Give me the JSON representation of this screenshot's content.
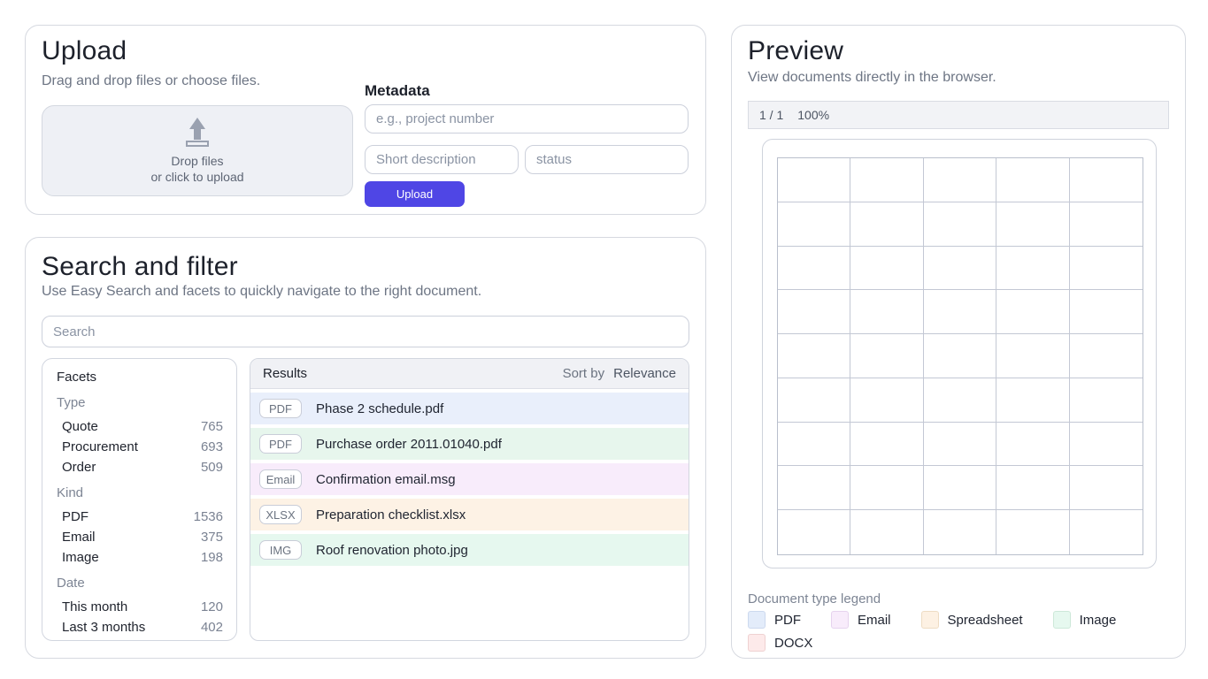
{
  "upload": {
    "title": "Upload",
    "subtitle": "Drag and drop files or choose files.",
    "dropzone_line1": "Drop files",
    "dropzone_line2": "or click to upload",
    "metadata_title": "Metadata",
    "project_placeholder": "e.g., project number",
    "description_placeholder": "Short description",
    "status_placeholder": "status",
    "button_label": "Upload",
    "button_color": "#4f46e5"
  },
  "search": {
    "title": "Search and filter",
    "subtitle": "Use Easy Search and facets to quickly navigate to the right document.",
    "search_placeholder": "Search",
    "facets": {
      "title": "Facets",
      "groups": [
        {
          "label": "Type",
          "items": [
            {
              "label": "Quote",
              "count": "765"
            },
            {
              "label": "Procurement",
              "count": "693"
            },
            {
              "label": "Order",
              "count": "509"
            }
          ]
        },
        {
          "label": "Kind",
          "items": [
            {
              "label": "PDF",
              "count": "1536"
            },
            {
              "label": "Email",
              "count": "375"
            },
            {
              "label": "Image",
              "count": "198"
            }
          ]
        },
        {
          "label": "Date",
          "items": [
            {
              "label": "This month",
              "count": "120"
            },
            {
              "label": "Last 3 months",
              "count": "402"
            }
          ]
        }
      ]
    },
    "results": {
      "title": "Results",
      "sort_label": "Sort by",
      "sort_value": "Relevance",
      "items": [
        {
          "badge": "PDF",
          "name": "Phase 2 schedule.pdf",
          "row_color": "#e9effb"
        },
        {
          "badge": "PDF",
          "name": "Purchase order 2011.01040.pdf",
          "row_color": "#e7f6ed"
        },
        {
          "badge": "Email",
          "name": "Confirmation email.msg",
          "row_color": "#f8ecfb"
        },
        {
          "badge": "XLSX",
          "name": "Preparation checklist.xlsx",
          "row_color": "#fdf2e5"
        },
        {
          "badge": "IMG",
          "name": "Roof renovation photo.jpg",
          "row_color": "#e6f8ef"
        }
      ]
    }
  },
  "preview": {
    "title": "Preview",
    "subtitle": "View documents directly in the browser.",
    "page_indicator": "1 / 1",
    "zoom_level": "100%",
    "grid": {
      "columns": 5,
      "rows": 9
    },
    "legend": {
      "title": "Document type legend",
      "items": [
        {
          "label": "PDF",
          "color": "#e3ecfa",
          "border": "#ccd9ee"
        },
        {
          "label": "Email",
          "color": "#f8ecfb",
          "border": "#e6d3ee"
        },
        {
          "label": "Spreadsheet",
          "color": "#fdf1e3",
          "border": "#eedcc3"
        },
        {
          "label": "Image",
          "color": "#e6f8ef",
          "border": "#cde8d9"
        },
        {
          "label": "DOCX",
          "color": "#fdeaea",
          "border": "#efd1d1"
        }
      ]
    }
  }
}
